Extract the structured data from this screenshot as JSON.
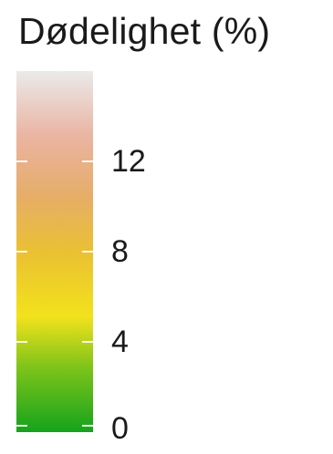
{
  "chart_data": {
    "type": "heatmap",
    "title": "Dødelighet (%)",
    "colorbar": {
      "orientation": "vertical",
      "range": [
        0,
        16
      ],
      "ticks": [
        0,
        4,
        8,
        12
      ],
      "tick_labels": [
        "0",
        "4",
        "8",
        "12"
      ],
      "colors": [
        "#15a31d",
        "#7ec41a",
        "#f2e21c",
        "#eac033",
        "#e6ad6a",
        "#eab4a2",
        "#eaeaeb"
      ]
    }
  }
}
